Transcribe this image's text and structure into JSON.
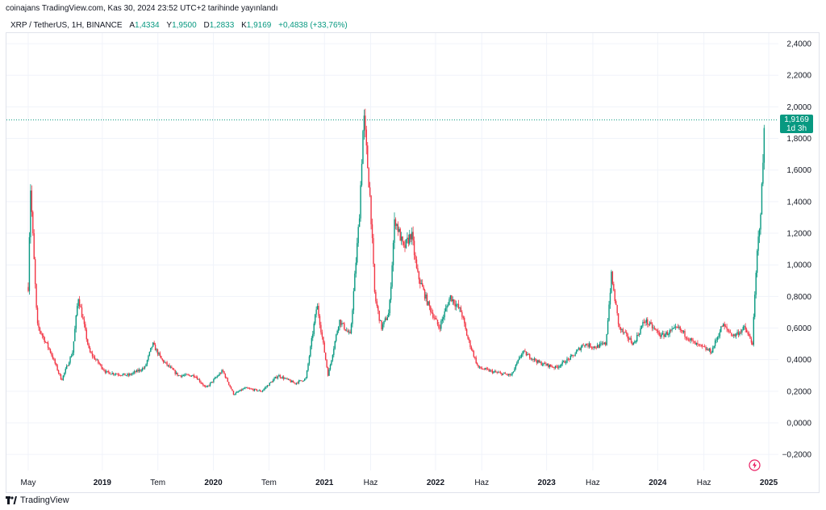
{
  "header": {
    "publisher_line": "coinajans TradingView.com, Kas 30, 2024 23:52 UTC+2 tarihinde yayınlandı",
    "symbol": "XRP / TetherUS, 1H, BINANCE",
    "ohlc": [
      {
        "key": "A",
        "value": "1,4334"
      },
      {
        "key": "Y",
        "value": "1,9500"
      },
      {
        "key": "D",
        "value": "1,2833"
      },
      {
        "key": "K",
        "value": "1,9169"
      }
    ],
    "change": "+0,4838 (+33,76%)"
  },
  "price_tag": {
    "price": "1,9169",
    "countdown": "1d 3h"
  },
  "brand": {
    "name": "TradingView"
  },
  "icons": {
    "flash": "flash-icon",
    "logo": "tradingview-logo-icon"
  },
  "colors": {
    "up": "#089981",
    "down": "#f23645",
    "grid": "#f0f3fa",
    "last_price_line": "#089981"
  },
  "chart_data": {
    "type": "candlestick",
    "title": "",
    "xlabel": "",
    "ylabel": "",
    "ylim": [
      -0.25,
      2.5
    ],
    "y_ticks": [
      "2,4000",
      "2,2000",
      "2,0000",
      "1,8000",
      "1,6000",
      "1,4000",
      "1,2000",
      "1,0000",
      "0,8000",
      "0,6000",
      "0,4000",
      "0,2000",
      "0,0000",
      "−0,2000"
    ],
    "y_tick_values": [
      2.4,
      2.2,
      2.0,
      1.8,
      1.6,
      1.4,
      1.2,
      1.0,
      0.8,
      0.6,
      0.4,
      0.2,
      0.0,
      -0.2
    ],
    "x_ticks": [
      {
        "label": "May",
        "t": 0.0,
        "bold": false
      },
      {
        "label": "2019",
        "t": 0.667,
        "bold": true
      },
      {
        "label": "Tem",
        "t": 1.167,
        "bold": false
      },
      {
        "label": "2020",
        "t": 1.667,
        "bold": true
      },
      {
        "label": "Tem",
        "t": 2.167,
        "bold": false
      },
      {
        "label": "2021",
        "t": 2.667,
        "bold": true
      },
      {
        "label": "Haz",
        "t": 3.083,
        "bold": false
      },
      {
        "label": "2022",
        "t": 3.667,
        "bold": true
      },
      {
        "label": "Haz",
        "t": 4.083,
        "bold": false
      },
      {
        "label": "2023",
        "t": 4.667,
        "bold": true
      },
      {
        "label": "Haz",
        "t": 5.083,
        "bold": false
      },
      {
        "label": "2024",
        "t": 5.667,
        "bold": true
      },
      {
        "label": "Haz",
        "t": 6.083,
        "bold": false
      },
      {
        "label": "2025",
        "t": 6.667,
        "bold": true
      }
    ],
    "last_price": 1.9169,
    "series_note_points": [
      [
        0.0,
        0.86
      ],
      [
        0.02,
        1.5
      ],
      [
        0.08,
        0.62
      ],
      [
        0.2,
        0.45
      ],
      [
        0.3,
        0.27
      ],
      [
        0.4,
        0.45
      ],
      [
        0.45,
        0.8
      ],
      [
        0.55,
        0.45
      ],
      [
        0.7,
        0.32
      ],
      [
        0.9,
        0.3
      ],
      [
        1.05,
        0.35
      ],
      [
        1.12,
        0.5
      ],
      [
        1.2,
        0.4
      ],
      [
        1.35,
        0.3
      ],
      [
        1.5,
        0.3
      ],
      [
        1.6,
        0.22
      ],
      [
        1.75,
        0.33
      ],
      [
        1.85,
        0.18
      ],
      [
        1.95,
        0.22
      ],
      [
        2.1,
        0.2
      ],
      [
        2.25,
        0.3
      ],
      [
        2.4,
        0.25
      ],
      [
        2.5,
        0.28
      ],
      [
        2.6,
        0.75
      ],
      [
        2.7,
        0.3
      ],
      [
        2.8,
        0.65
      ],
      [
        2.9,
        0.55
      ],
      [
        2.98,
        1.3
      ],
      [
        3.02,
        1.95
      ],
      [
        3.08,
        1.4
      ],
      [
        3.12,
        0.8
      ],
      [
        3.18,
        0.6
      ],
      [
        3.25,
        0.7
      ],
      [
        3.3,
        1.3
      ],
      [
        3.38,
        1.1
      ],
      [
        3.45,
        1.2
      ],
      [
        3.5,
        0.95
      ],
      [
        3.6,
        0.75
      ],
      [
        3.7,
        0.6
      ],
      [
        3.8,
        0.8
      ],
      [
        3.9,
        0.7
      ],
      [
        3.95,
        0.55
      ],
      [
        4.05,
        0.35
      ],
      [
        4.2,
        0.32
      ],
      [
        4.35,
        0.3
      ],
      [
        4.45,
        0.45
      ],
      [
        4.6,
        0.38
      ],
      [
        4.75,
        0.35
      ],
      [
        4.9,
        0.42
      ],
      [
        5.0,
        0.5
      ],
      [
        5.1,
        0.48
      ],
      [
        5.2,
        0.5
      ],
      [
        5.25,
        0.93
      ],
      [
        5.32,
        0.6
      ],
      [
        5.45,
        0.5
      ],
      [
        5.55,
        0.65
      ],
      [
        5.7,
        0.55
      ],
      [
        5.85,
        0.6
      ],
      [
        6.0,
        0.5
      ],
      [
        6.15,
        0.45
      ],
      [
        6.25,
        0.62
      ],
      [
        6.35,
        0.55
      ],
      [
        6.45,
        0.6
      ],
      [
        6.52,
        0.5
      ],
      [
        6.56,
        1.05
      ],
      [
        6.6,
        1.4
      ],
      [
        6.63,
        1.9169
      ]
    ]
  }
}
